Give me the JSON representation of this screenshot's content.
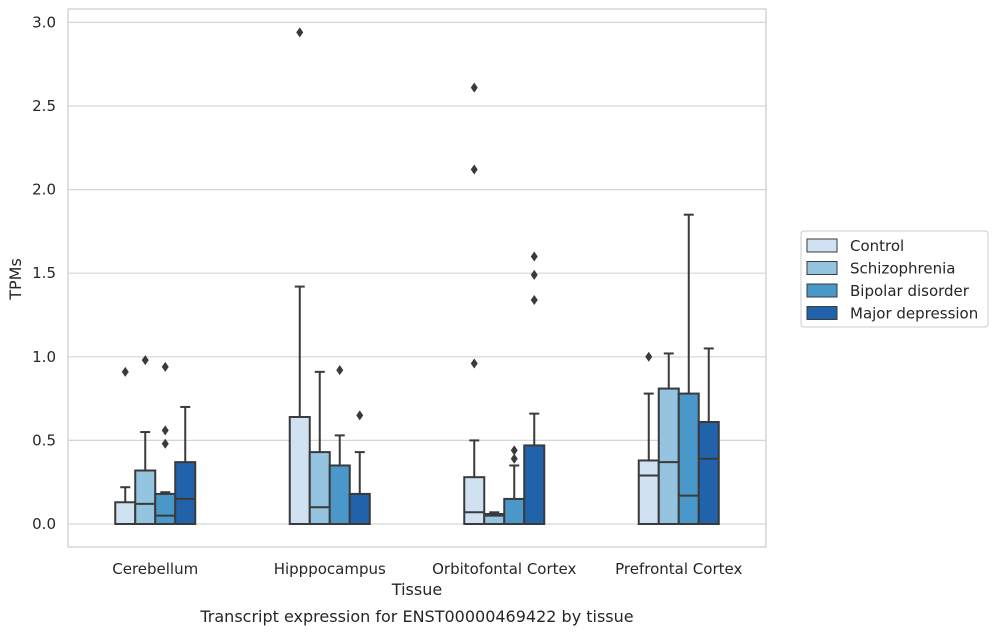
{
  "chart_data": {
    "type": "box",
    "caption": "Transcript expression for ENST00000469422 by tissue",
    "xlabel": "Tissue",
    "ylabel": "TPMs",
    "ylim": [
      -0.14,
      3.08
    ],
    "yticks": [
      "0.0",
      "0.5",
      "1.0",
      "1.5",
      "2.0",
      "2.5",
      "3.0"
    ],
    "grid": true,
    "legend_position": "right",
    "categories": [
      "Cerebellum",
      "Hipppocampus",
      "Orbitofontal Cortex",
      "Prefrontal Cortex"
    ],
    "series": [
      {
        "name": "Control",
        "color": "#d0e1f2",
        "boxes": [
          {
            "min": 0.0,
            "q1": 0.0,
            "median": 0.0,
            "q3": 0.13,
            "max": 0.22,
            "outliers": [
              0.91
            ]
          },
          {
            "min": 0.0,
            "q1": 0.0,
            "median": 0.0,
            "q3": 0.64,
            "max": 1.42,
            "outliers": [
              2.94
            ]
          },
          {
            "min": 0.0,
            "q1": 0.0,
            "median": 0.07,
            "q3": 0.28,
            "max": 0.5,
            "outliers": [
              0.96,
              2.12,
              2.61
            ]
          },
          {
            "min": 0.0,
            "q1": 0.0,
            "median": 0.29,
            "q3": 0.38,
            "max": 0.78,
            "outliers": [
              1.0
            ]
          }
        ]
      },
      {
        "name": "Schizophrenia",
        "color": "#94c4df",
        "boxes": [
          {
            "min": 0.0,
            "q1": 0.0,
            "median": 0.12,
            "q3": 0.32,
            "max": 0.55,
            "outliers": [
              0.98
            ]
          },
          {
            "min": 0.0,
            "q1": 0.0,
            "median": 0.1,
            "q3": 0.43,
            "max": 0.91,
            "outliers": []
          },
          {
            "min": 0.0,
            "q1": 0.0,
            "median": 0.05,
            "q3": 0.06,
            "max": 0.07,
            "outliers": []
          },
          {
            "min": 0.0,
            "q1": 0.0,
            "median": 0.37,
            "q3": 0.81,
            "max": 1.02,
            "outliers": []
          }
        ]
      },
      {
        "name": "Bipolar disorder",
        "color": "#4a98c9",
        "boxes": [
          {
            "min": 0.0,
            "q1": 0.0,
            "median": 0.05,
            "q3": 0.18,
            "max": 0.19,
            "outliers": [
              0.48,
              0.56,
              0.94
            ]
          },
          {
            "min": 0.0,
            "q1": 0.0,
            "median": 0.0,
            "q3": 0.35,
            "max": 0.53,
            "outliers": [
              0.92
            ]
          },
          {
            "min": 0.0,
            "q1": 0.0,
            "median": 0.0,
            "q3": 0.15,
            "max": 0.35,
            "outliers": [
              0.39,
              0.44
            ]
          },
          {
            "min": 0.0,
            "q1": 0.0,
            "median": 0.17,
            "q3": 0.78,
            "max": 1.85,
            "outliers": []
          }
        ]
      },
      {
        "name": "Major depression",
        "color": "#2163aa",
        "boxes": [
          {
            "min": 0.0,
            "q1": 0.0,
            "median": 0.15,
            "q3": 0.37,
            "max": 0.7,
            "outliers": []
          },
          {
            "min": 0.0,
            "q1": 0.0,
            "median": 0.0,
            "q3": 0.18,
            "max": 0.43,
            "outliers": [
              0.65
            ]
          },
          {
            "min": 0.0,
            "q1": 0.0,
            "median": 0.0,
            "q3": 0.47,
            "max": 0.66,
            "outliers": [
              1.34,
              1.49,
              1.6
            ]
          },
          {
            "min": 0.0,
            "q1": 0.0,
            "median": 0.39,
            "q3": 0.61,
            "max": 1.05,
            "outliers": []
          }
        ]
      }
    ]
  }
}
